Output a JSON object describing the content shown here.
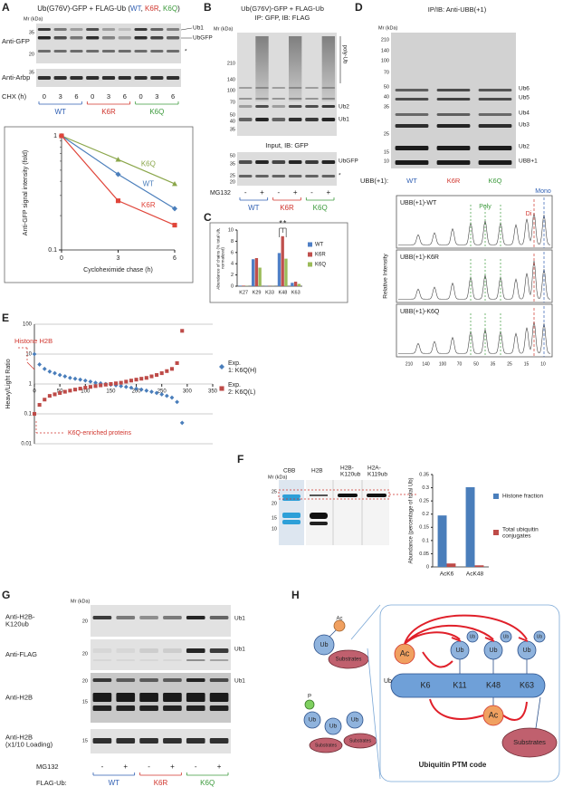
{
  "group_colors": [
    "#2f5fb3",
    "#d0342c",
    "#3c9a3c"
  ],
  "panel_a": {
    "letter": "A",
    "title_parts": [
      "Ub(G76V)-GFP + FLAG-Ub (",
      "WT",
      ", ",
      "K6R",
      ", ",
      "K6Q",
      ")"
    ],
    "mr": "Mr (kDa)",
    "blot1_label": "Anti-GFP",
    "blot1_markers": [
      "35",
      "20"
    ],
    "blot1_right": [
      "Ub1",
      "UbGFP",
      "*"
    ],
    "blot2_label": "Anti-Arbp",
    "blot2_markers": [
      "35"
    ],
    "chx_label": "CHX (h)",
    "times": [
      "0",
      "3",
      "6",
      "0",
      "3",
      "6",
      "0",
      "3",
      "6"
    ],
    "groups": [
      "WT",
      "K6R",
      "K6Q"
    ],
    "chart": {
      "type": "line",
      "x_label": "Cycloheximide chase (h)",
      "y_label": "Anti-GFP signal intensity (fold)",
      "x": [
        0,
        3,
        6
      ],
      "xlim": [
        0,
        6
      ],
      "xticks": [
        0,
        3,
        6
      ],
      "ylim": [
        0.1,
        1
      ],
      "yticks": [
        0.1,
        1
      ],
      "log_y": true,
      "series": [
        {
          "name": "K6Q",
          "color": "#8aa64a",
          "marker": "triangle",
          "values": [
            1,
            0.62,
            0.38
          ]
        },
        {
          "name": "WT",
          "color": "#4a7ebb",
          "marker": "diamond",
          "values": [
            1,
            0.46,
            0.23
          ]
        },
        {
          "name": "K6R",
          "color": "#e0453a",
          "marker": "square",
          "values": [
            1,
            0.27,
            0.165
          ]
        }
      ]
    }
  },
  "panel_b": {
    "letter": "B",
    "title": "Ub(G76V)-GFP + FLAG-Ub",
    "subtitle": "IP: GFP, IB: FLAG",
    "mr": "Mr (kDa)",
    "blot1_markers": [
      "210",
      "140",
      "100",
      "70",
      "50",
      "40",
      "35"
    ],
    "blot1_right": [
      "poly-Ub",
      "Ub2",
      "Ub1"
    ],
    "blot2_title": "Input, IB: GFP",
    "blot2_markers": [
      "50",
      "35",
      "25",
      "20"
    ],
    "blot2_right": [
      "UbGFP",
      "*"
    ],
    "treatment": "MG132",
    "signs": [
      "-",
      "+",
      "-",
      "+",
      "-",
      "+"
    ],
    "groups": [
      "WT",
      "K6R",
      "K6Q"
    ]
  },
  "panel_c": {
    "letter": "C",
    "chart": {
      "type": "bar",
      "y_label": "Abundance of chains (% total Ub, normalized)",
      "categories": [
        "K27",
        "K29",
        "K33",
        "K48",
        "K63"
      ],
      "ylim": [
        0,
        10
      ],
      "yticks": [
        0,
        2,
        4,
        6,
        8,
        10
      ],
      "legend": "right",
      "significance": [
        "*",
        "*"
      ],
      "series": [
        {
          "name": "WT",
          "color": "#4f7fc6",
          "values": [
            0.1,
            4.8,
            0.05,
            5.9,
            0.6
          ]
        },
        {
          "name": "K6R",
          "color": "#c0504d",
          "values": [
            0.1,
            5.0,
            0.05,
            8.9,
            0.8
          ]
        },
        {
          "name": "K6Q",
          "color": "#9bbb59",
          "values": [
            0.05,
            3.3,
            0.03,
            4.9,
            0.4
          ]
        }
      ]
    }
  },
  "panel_d": {
    "letter": "D",
    "title": "IP/IB: Anti-UBB(+1)",
    "mr": "Mr (kDa)",
    "blot_markers": [
      "210",
      "140",
      "100",
      "70",
      "50",
      "40",
      "35",
      "25",
      "15",
      "10"
    ],
    "blot_right": [
      "Ub6",
      "Ub5",
      "Ub4",
      "Ub3",
      "Ub2",
      "UBB+1"
    ],
    "lane_label": "UBB(+1):",
    "groups": [
      "WT",
      "K6R",
      "K6Q"
    ],
    "trace_panels": [
      "UBB(+1)-WT",
      "UBB(+1)-K6R",
      "UBB(+1)-K6Q"
    ],
    "trace_mono": "Mono",
    "trace_poly": "Poly",
    "trace_di": "Di",
    "trace_x_labels": [
      "210",
      "140",
      "100",
      "70",
      "50",
      "35",
      "25",
      "15",
      "10"
    ],
    "trace_y_label": "Relative Intensity"
  },
  "panel_e": {
    "letter": "E",
    "annotations": [
      "Histone H2B",
      "K6Q-enriched proteins"
    ],
    "chart": {
      "type": "scatter",
      "y_label": "Heavy/Light Ratio",
      "log_y": true,
      "grid": true,
      "legend": "right",
      "xlim": [
        0,
        350
      ],
      "xticks": [
        0,
        50,
        100,
        150,
        200,
        250,
        300,
        350
      ],
      "ylim": [
        0.01,
        100
      ],
      "yticks": [
        0.01,
        0.1,
        1,
        10,
        100
      ],
      "x": [
        0,
        10,
        20,
        30,
        40,
        50,
        60,
        70,
        80,
        90,
        100,
        110,
        120,
        130,
        140,
        150,
        160,
        170,
        180,
        190,
        200,
        210,
        220,
        230,
        240,
        250,
        260,
        270,
        280,
        290
      ],
      "series": [
        {
          "name": "Exp. 1: K6Q(H)",
          "color": "#4a7ebb",
          "marker": "diamond",
          "values": [
            10,
            4.5,
            3.2,
            2.6,
            2.3,
            2.0,
            1.8,
            1.6,
            1.5,
            1.4,
            1.3,
            1.2,
            1.1,
            1.05,
            1.0,
            0.95,
            0.9,
            0.85,
            0.8,
            0.75,
            0.7,
            0.65,
            0.6,
            0.55,
            0.5,
            0.45,
            0.4,
            0.35,
            0.25,
            0.05
          ]
        },
        {
          "name": "Exp. 2: K6Q(L)",
          "color": "#be4b48",
          "marker": "square",
          "values": [
            0.1,
            0.2,
            0.3,
            0.4,
            0.45,
            0.5,
            0.55,
            0.6,
            0.65,
            0.7,
            0.75,
            0.8,
            0.85,
            0.9,
            0.95,
            1.0,
            1.05,
            1.1,
            1.2,
            1.3,
            1.4,
            1.5,
            1.6,
            1.8,
            2.0,
            2.3,
            2.7,
            3.2,
            5,
            60
          ]
        }
      ]
    }
  },
  "panel_f": {
    "letter": "F",
    "mr": "Mr (kDa)",
    "lanes": [
      "CBB",
      "H2B",
      "H2B-K120ub",
      "H2A-K119ub"
    ],
    "markers": [
      "25",
      "20",
      "15",
      "10"
    ],
    "chart": {
      "type": "bar",
      "y_label": "Abundance (percentage of total Ub)",
      "categories": [
        "AcK6",
        "AcK48"
      ],
      "ylim": [
        0,
        0.35
      ],
      "yticks": [
        0,
        0.05,
        0.1,
        0.15,
        0.2,
        0.25,
        0.3,
        0.35
      ],
      "legend": "right",
      "series": [
        {
          "name": "Histone fraction",
          "color": "#4a7ebb",
          "values": [
            0.195,
            0.302
          ]
        },
        {
          "name": "Total ubiquitin conjugates",
          "color": "#be4b48",
          "values": [
            0.013,
            0.006
          ]
        }
      ]
    }
  },
  "panel_g": {
    "letter": "G",
    "mr": "Mr (kDa)",
    "blots": [
      {
        "label": "Anti-H2B-K120ub",
        "markers": [
          "20"
        ],
        "right": "Ub1"
      },
      {
        "label": "Anti-FLAG",
        "markers": [
          "20"
        ],
        "right": "Ub1"
      },
      {
        "label": "Anti-H2B",
        "markers": [
          "20",
          "15"
        ],
        "right": "Ub1"
      },
      {
        "label": "Anti-H2B (x1/10 Loading)",
        "markers": [
          "15"
        ]
      }
    ],
    "treatment": "MG132",
    "signs": [
      "-",
      "+",
      "-",
      "+",
      "-",
      "+"
    ],
    "lane_label": "FLAG-Ub:",
    "groups": [
      "WT",
      "K6R",
      "K6Q"
    ]
  },
  "panel_h": {
    "letter": "H",
    "ub": "Ub",
    "ac": "Ac",
    "p": "P",
    "substrates": "Substrates",
    "lysines": [
      "K6",
      "K11",
      "K48",
      "K63"
    ],
    "caption": "Ubiquitin PTM code"
  }
}
